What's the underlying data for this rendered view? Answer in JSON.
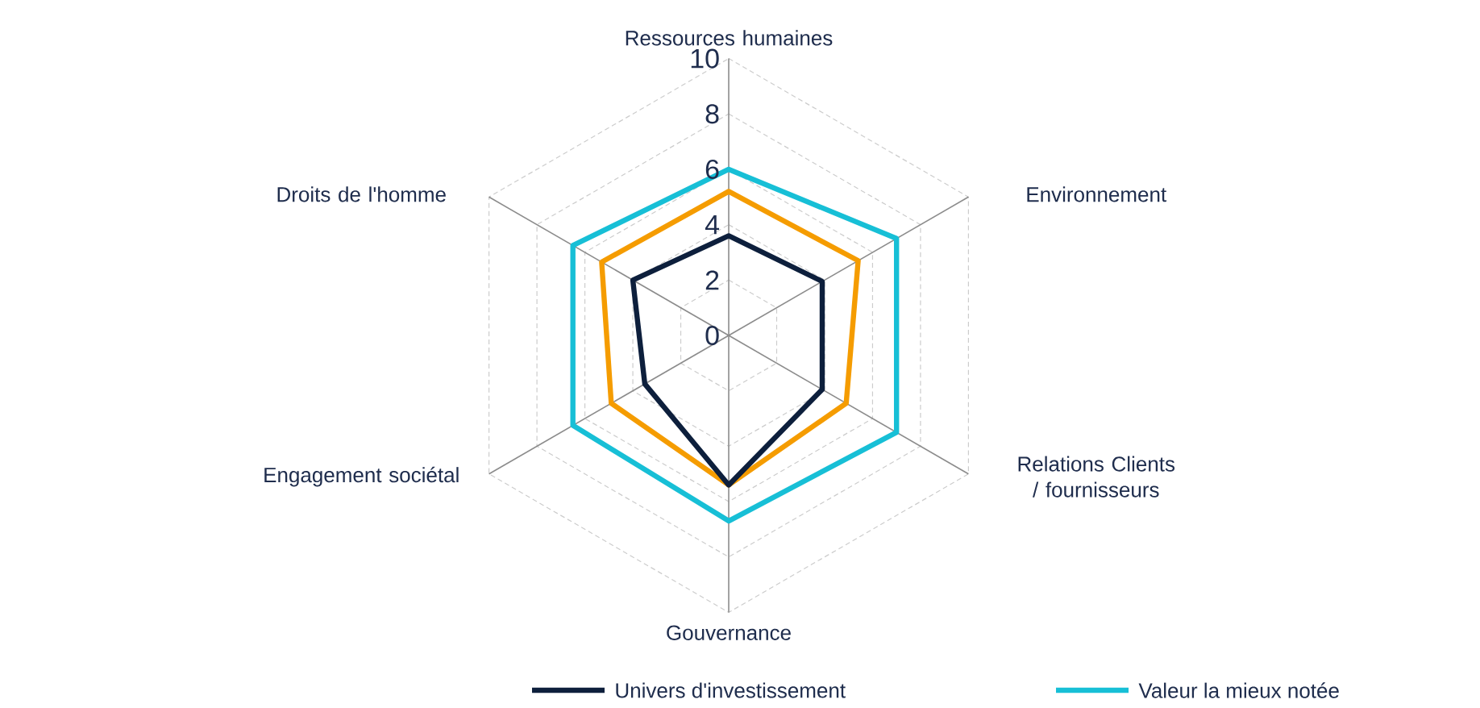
{
  "chart_data": {
    "type": "radar",
    "categories": [
      "Ressources humaines",
      "Environnement",
      "Relations Clients / fournisseurs",
      "Gouvernance",
      "Engagement sociétal",
      "Droits de l'homme"
    ],
    "series": [
      {
        "color": "#f59c00",
        "values": [
          5.2,
          5.4,
          4.9,
          5.4,
          4.9,
          5.3
        ]
      },
      {
        "name": "Univers d'investissement",
        "color": "#0d1f3c",
        "values": [
          3.6,
          3.9,
          3.9,
          5.4,
          3.5,
          4.0
        ]
      },
      {
        "name": "Valeur la mieux notée",
        "color": "#17bfd6",
        "values": [
          6.0,
          7.0,
          7.0,
          6.7,
          6.5,
          6.5
        ]
      }
    ],
    "ylim": [
      0,
      10
    ],
    "yticks": [
      {
        "value": 0,
        "label": "0"
      },
      2,
      4,
      6,
      8,
      10
    ],
    "grid": true,
    "legend": "bottom",
    "line_style": "solid"
  }
}
